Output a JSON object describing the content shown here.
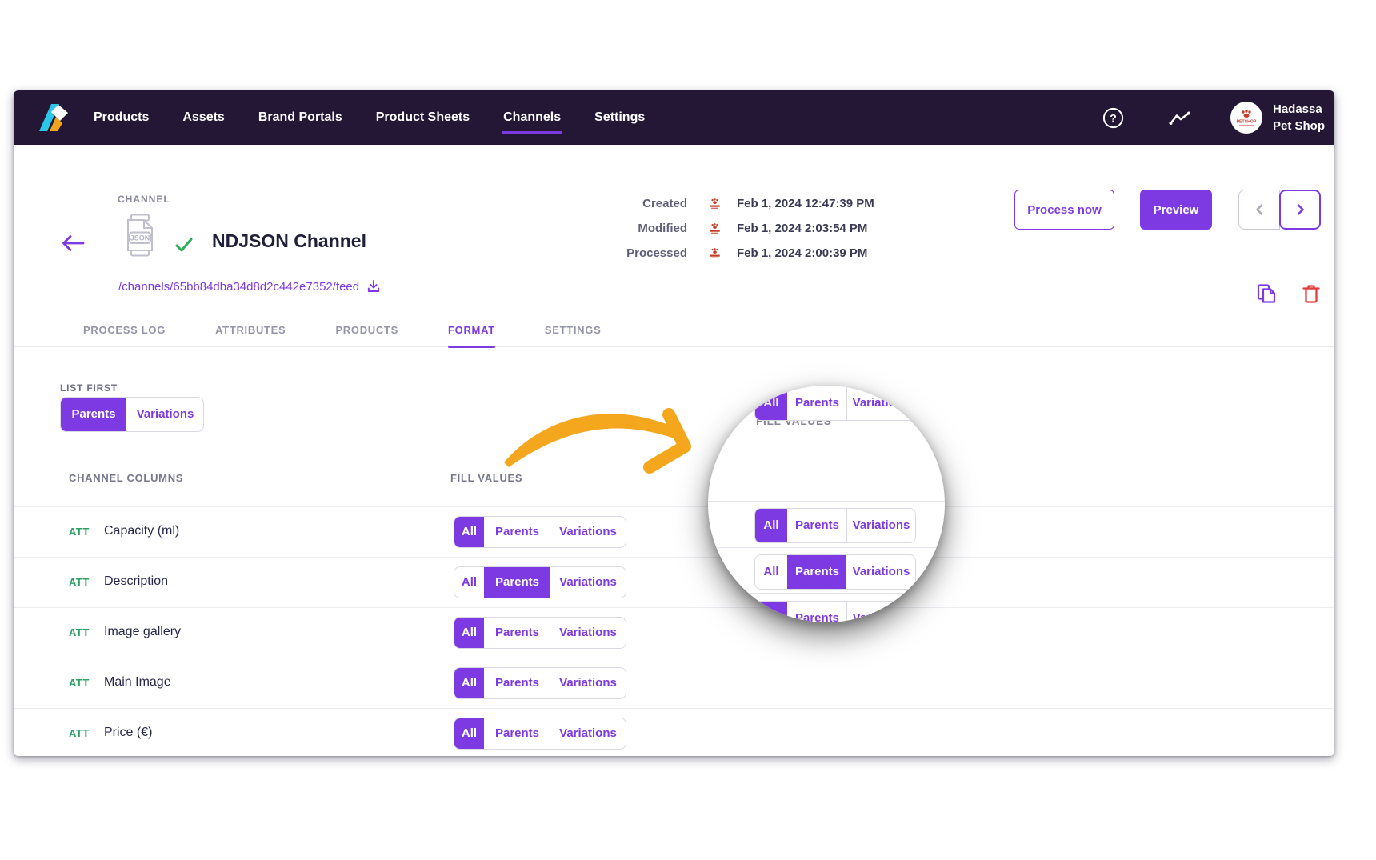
{
  "nav": {
    "items": [
      "Products",
      "Assets",
      "Brand Portals",
      "Product Sheets",
      "Channels",
      "Settings"
    ],
    "active_item": "Channels",
    "user_name_line1": "Hadassa",
    "user_name_line2": "Pet Shop",
    "avatar_label": "PETSHOP"
  },
  "header": {
    "entity_label": "CHANNEL",
    "title": "NDJSON Channel",
    "file_type_badge": "JSON",
    "feed_url": "/channels/65bb84dba34d8d2c442e7352/feed",
    "timestamps": [
      {
        "label": "Created",
        "value": "Feb 1, 2024 12:47:39 PM"
      },
      {
        "label": "Modified",
        "value": "Feb 1, 2024 2:03:54 PM"
      },
      {
        "label": "Processed",
        "value": "Feb 1, 2024 2:00:39 PM"
      }
    ],
    "process_button": "Process now",
    "preview_button": "Preview"
  },
  "tabs": {
    "items": [
      "PROCESS LOG",
      "ATTRIBUTES",
      "PRODUCTS",
      "FORMAT",
      "SETTINGS"
    ],
    "active": "FORMAT"
  },
  "format": {
    "list_first_label": "LIST FIRST",
    "list_first_options": [
      "Parents",
      "Variations"
    ],
    "list_first_selected": "Parents",
    "columns_header": "CHANNEL COLUMNS",
    "fill_values_header": "FILL VALUES",
    "segment_options": [
      "All",
      "Parents",
      "Variations"
    ],
    "rows": [
      {
        "badge": "ATT",
        "name": "Capacity (ml)",
        "fill_value": "All"
      },
      {
        "badge": "ATT",
        "name": "Description",
        "fill_value": "Parents"
      },
      {
        "badge": "ATT",
        "name": "Image gallery",
        "fill_value": "All"
      },
      {
        "badge": "ATT",
        "name": "Main Image",
        "fill_value": "All"
      },
      {
        "badge": "ATT",
        "name": "Price (€)",
        "fill_value": "All"
      }
    ]
  },
  "loupe": {
    "header": "FILL VALUES",
    "rows": [
      {
        "fill_value": "All"
      },
      {
        "fill_value": "Parents"
      },
      {
        "fill_value": "All"
      },
      {
        "fill_value": "All"
      }
    ]
  },
  "colors": {
    "primary_purple": "#7D3AE3",
    "nav_background": "#231735",
    "attribute_green": "#2BA164",
    "success_green": "#2EAD5B",
    "danger_red": "#E23B3B",
    "brand_logo_red": "#C3402F",
    "arrow_orange": "#F4A71D"
  }
}
